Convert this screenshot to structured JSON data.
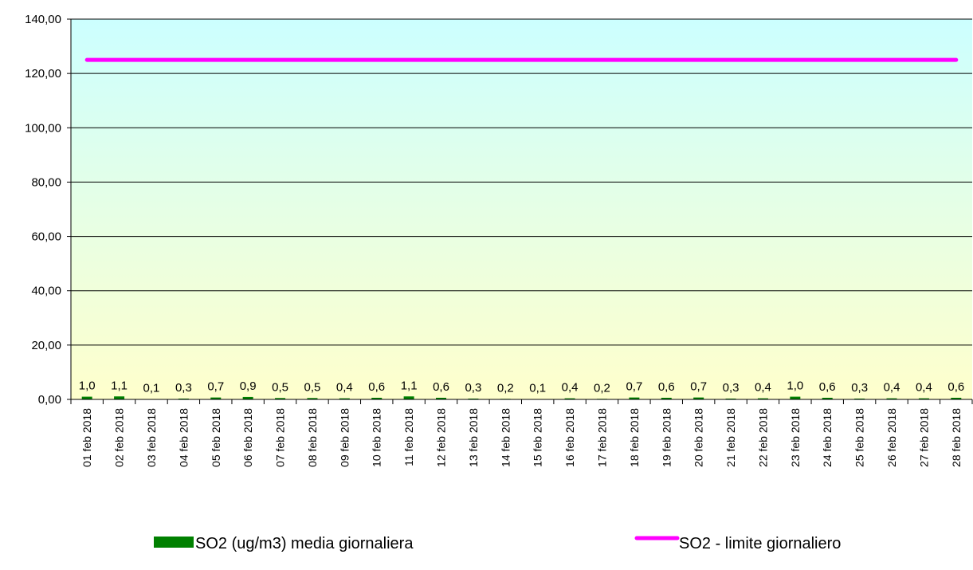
{
  "chart_data": {
    "type": "bar",
    "categories": [
      "01 feb 2018",
      "02 feb 2018",
      "03 feb 2018",
      "04 feb 2018",
      "05 feb 2018",
      "06 feb 2018",
      "07 feb 2018",
      "08 feb 2018",
      "09 feb 2018",
      "10 feb 2018",
      "11 feb 2018",
      "12 feb 2018",
      "13 feb 2018",
      "14 feb 2018",
      "15 feb 2018",
      "16 feb 2018",
      "17 feb 2018",
      "18 feb 2018",
      "19 feb 2018",
      "20 feb 2018",
      "21 feb 2018",
      "22 feb 2018",
      "23 feb 2018",
      "24 feb 2018",
      "25 feb 2018",
      "26 feb 2018",
      "27 feb 2018",
      "28 feb 2018"
    ],
    "series": [
      {
        "name": "SO2 (ug/m3) media giornaliera",
        "type": "bar",
        "color": "#008000",
        "values": [
          1.0,
          1.1,
          0.1,
          0.3,
          0.7,
          0.9,
          0.5,
          0.5,
          0.4,
          0.6,
          1.1,
          0.6,
          0.3,
          0.2,
          0.1,
          0.4,
          0.2,
          0.7,
          0.6,
          0.7,
          0.3,
          0.4,
          1.0,
          0.6,
          0.3,
          0.4,
          0.4,
          0.6
        ],
        "data_labels": [
          "1,0",
          "1,1",
          "0,1",
          "0,3",
          "0,7",
          "0,9",
          "0,5",
          "0,5",
          "0,4",
          "0,6",
          "1,1",
          "0,6",
          "0,3",
          "0,2",
          "0,1",
          "0,4",
          "0,2",
          "0,7",
          "0,6",
          "0,7",
          "0,3",
          "0,4",
          "1,0",
          "0,6",
          "0,3",
          "0,4",
          "0,4",
          "0,6"
        ]
      },
      {
        "name": "SO2 - limite giornaliero",
        "type": "line",
        "color": "#ff00ff",
        "values": [
          125,
          125,
          125,
          125,
          125,
          125,
          125,
          125,
          125,
          125,
          125,
          125,
          125,
          125,
          125,
          125,
          125,
          125,
          125,
          125,
          125,
          125,
          125,
          125,
          125,
          125,
          125,
          125
        ]
      }
    ],
    "ylim": [
      0,
      140
    ],
    "yticks": [
      0,
      20,
      40,
      60,
      80,
      100,
      120,
      140
    ],
    "ytick_labels": [
      "0,00",
      "20,00",
      "40,00",
      "60,00",
      "80,00",
      "100,00",
      "120,00",
      "140,00"
    ],
    "grid": true,
    "legend_position": "bottom",
    "background_gradient": [
      "#ccffff",
      "#ffffcc"
    ]
  }
}
